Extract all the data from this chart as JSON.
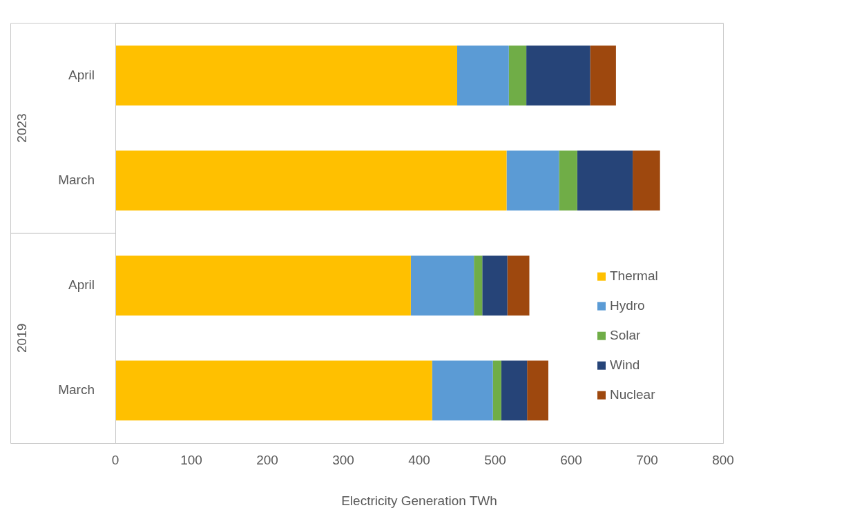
{
  "chart_data": {
    "type": "bar",
    "orientation": "horizontal",
    "stacked": true,
    "xlabel": "Electricity Generation TWh",
    "categories": [
      "April",
      "March",
      "April",
      "March"
    ],
    "annotations": [
      "2023",
      "2019"
    ],
    "series": [
      {
        "name": "Thermal",
        "color": "#ffc000",
        "values": [
          450,
          515,
          389,
          417
        ]
      },
      {
        "name": "Hydro",
        "color": "#5b9bd5",
        "values": [
          68,
          69,
          83,
          80
        ]
      },
      {
        "name": "Solar",
        "color": "#70ad47",
        "values": [
          23,
          24,
          11,
          11
        ]
      },
      {
        "name": "Wind",
        "color": "#264478",
        "values": [
          84,
          73,
          33,
          34
        ]
      },
      {
        "name": "Nuclear",
        "color": "#9e480e",
        "values": [
          34,
          36,
          29,
          28
        ]
      }
    ],
    "xlim": [
      0,
      800
    ],
    "xticks": [
      0,
      100,
      200,
      300,
      400,
      500,
      600,
      700,
      800
    ],
    "grid": false,
    "legend": "right"
  }
}
